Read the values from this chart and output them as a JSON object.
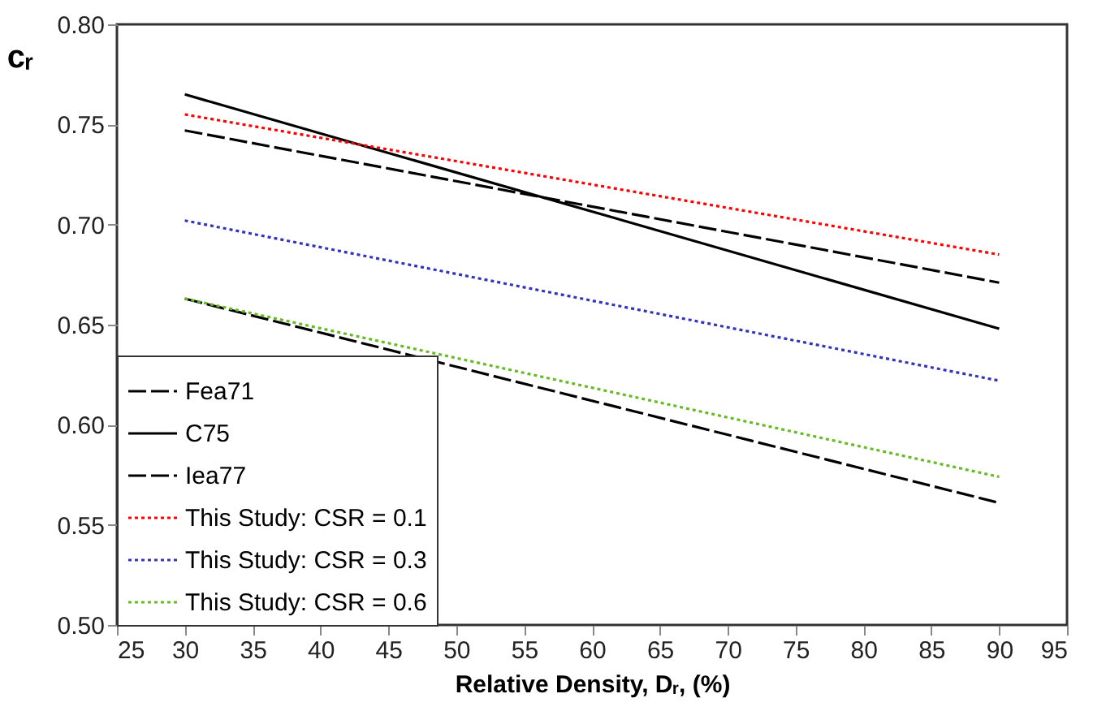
{
  "chart_data": {
    "type": "line",
    "xlabel": "Relative Density, Dᵣ, (%)",
    "ylabel": "cᵣ",
    "x": [
      30,
      90
    ],
    "series": [
      {
        "name": "Fea71",
        "color": "#000000",
        "line_style": "dashed",
        "values": [
          0.747,
          0.671
        ]
      },
      {
        "name": "C75",
        "color": "#000000",
        "line_style": "solid",
        "values": [
          0.765,
          0.648
        ]
      },
      {
        "name": "Iea77",
        "color": "#000000",
        "line_style": "dashed",
        "values": [
          0.663,
          0.561
        ]
      },
      {
        "name": "This Study: CSR = 0.1",
        "color": "#ff0000",
        "line_style": "dotted",
        "values": [
          0.755,
          0.685
        ]
      },
      {
        "name": "This Study: CSR = 0.3",
        "color": "#3333bb",
        "line_style": "dotted",
        "values": [
          0.702,
          0.622
        ]
      },
      {
        "name": "This Study: CSR = 0.6",
        "color": "#66bb22",
        "line_style": "dotted",
        "values": [
          0.663,
          0.574
        ]
      }
    ],
    "xlim": [
      25,
      95
    ],
    "xticks": [
      25,
      30,
      35,
      40,
      45,
      50,
      55,
      60,
      65,
      70,
      75,
      80,
      85,
      90,
      95
    ],
    "ylim": [
      0.5,
      0.8
    ],
    "yticks": [
      {
        "value": 0.5,
        "label": "0.50"
      },
      0.55,
      {
        "value": 0.6,
        "label": "0.60"
      },
      0.65,
      {
        "value": 0.7,
        "label": "0.70"
      },
      0.75,
      {
        "value": 0.8,
        "label": "0.80"
      }
    ],
    "grid": false,
    "legend": "bottom left",
    "marker": "none"
  }
}
